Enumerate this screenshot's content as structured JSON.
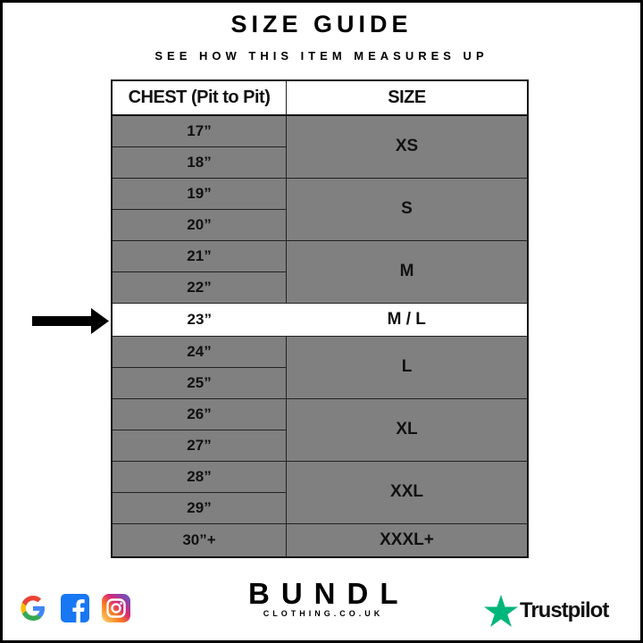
{
  "title": "SIZE GUIDE",
  "subtitle": "SEE HOW THIS ITEM MEASURES UP",
  "headers": {
    "chest": "CHEST (Pit to Pit)",
    "size": "SIZE"
  },
  "rows": [
    {
      "chest": "17”",
      "size": "XS"
    },
    {
      "chest": "18”"
    },
    {
      "chest": "19”",
      "size": "S"
    },
    {
      "chest": "20”"
    },
    {
      "chest": "21”",
      "size": "M"
    },
    {
      "chest": "22”"
    },
    {
      "chest": "23”",
      "size": "M / L"
    },
    {
      "chest": "24”",
      "size": "L"
    },
    {
      "chest": "25”"
    },
    {
      "chest": "26”",
      "size": "XL"
    },
    {
      "chest": "27”"
    },
    {
      "chest": "28”",
      "size": "XXL"
    },
    {
      "chest": "29”"
    },
    {
      "chest": "30”+",
      "size": "XXXL+"
    }
  ],
  "highlighted_row": "23”",
  "brand": {
    "name": "BUNDL",
    "site": "CLOTHING.CO.UK"
  },
  "trustpilot": "Trustpilot",
  "social_icons": [
    "google-icon",
    "facebook-icon",
    "instagram-icon"
  ],
  "colors": {
    "row_grey": "#808080",
    "trustpilot_green": "#00b67a"
  }
}
